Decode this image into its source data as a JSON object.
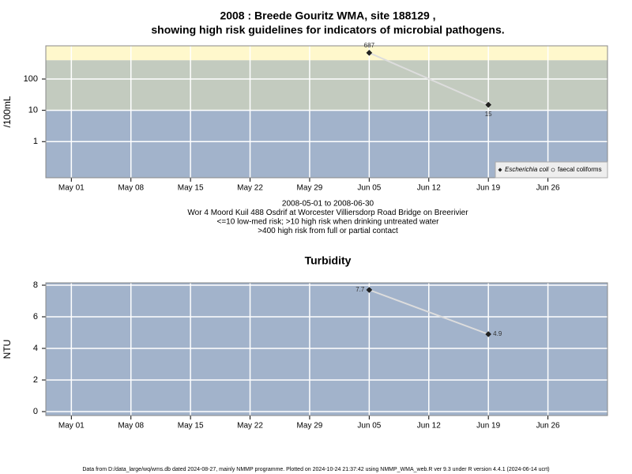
{
  "charts": [
    {
      "chart_data": {
        "type": "line",
        "log_y": true,
        "title": [
          "2008 : Breede Gouritz WMA, site 188129 ,",
          "showing high risk guidelines for indicators of microbial pathogens."
        ],
        "subtitle": [
          "2008-05-01 to 2008-06-30",
          "Wor 4 Moord Kuil 488 Osdrif at Worcester Villiersdorp Road Bridge on Breerivier",
          "<=10 low-med risk; >10 high risk when drinking untreated water",
          ">400 high risk from full or partial contact"
        ],
        "y_label": "/100mL",
        "x": [
          "2008-06-05",
          "2008-06-19"
        ],
        "series": [
          {
            "name": "Escherichia coli",
            "color": "#222222",
            "values": [
              687,
              15
            ]
          },
          {
            "name": "faecal coliforms",
            "color": "#ffffff",
            "values": [
              null,
              null
            ]
          }
        ],
        "xlim": [
          "2008-04-28",
          "2008-07-03"
        ],
        "xticks": [
          {
            "value": "2008-05-01",
            "label": "May 01"
          },
          {
            "value": "2008-05-08",
            "label": "May 08"
          },
          {
            "value": "2008-05-15",
            "label": "May 15"
          },
          {
            "value": "2008-05-22",
            "label": "May 22"
          },
          {
            "value": "2008-05-29",
            "label": "May 29"
          },
          {
            "value": "2008-06-05",
            "label": "Jun 05"
          },
          {
            "value": "2008-06-12",
            "label": "Jun 12"
          },
          {
            "value": "2008-06-19",
            "label": "Jun 19"
          },
          {
            "value": "2008-06-26",
            "label": "Jun 26"
          }
        ],
        "ylim": [
          0.07,
          1150
        ],
        "yticks": [
          1,
          10,
          100
        ],
        "thresholds": [
          10,
          400
        ],
        "band_colors": [
          "#a2b3cb",
          "#c3cbbf",
          "#fff8cc"
        ],
        "line_color": "#dddddd",
        "grid": true,
        "legend": "bottom-right"
      }
    },
    {
      "chart_data": {
        "type": "line",
        "log_y": false,
        "title": [
          "Turbidity"
        ],
        "y_label": "NTU",
        "x": [
          "2008-06-05",
          "2008-06-19"
        ],
        "series": [
          {
            "name": "Turbidity",
            "color": "#222222",
            "values": [
              7.7,
              4.9
            ]
          }
        ],
        "xlim": [
          "2008-04-28",
          "2008-07-03"
        ],
        "xticks": [
          {
            "value": "2008-05-01",
            "label": "May 01"
          },
          {
            "value": "2008-05-08",
            "label": "May 08"
          },
          {
            "value": "2008-05-15",
            "label": "May 15"
          },
          {
            "value": "2008-05-22",
            "label": "May 22"
          },
          {
            "value": "2008-05-29",
            "label": "May 29"
          },
          {
            "value": "2008-06-05",
            "label": "Jun 05"
          },
          {
            "value": "2008-06-12",
            "label": "Jun 12"
          },
          {
            "value": "2008-06-19",
            "label": "Jun 19"
          },
          {
            "value": "2008-06-26",
            "label": "Jun 26"
          }
        ],
        "ylim": [
          -0.25,
          8.15
        ],
        "yticks": [
          0,
          2,
          4,
          6,
          8
        ],
        "band_colors": [
          "#a2b3cb"
        ],
        "line_color": "#dddddd",
        "grid": true
      }
    }
  ],
  "footer": "Data from D:/data_large/wq/wms.db dated 2024-08-27, mainly NMMP programme. Plotted on 2024-10-24 21:37:42 using NMMP_WMA_web.R ver 9.3 under R version 4.4.1 (2024-06-14 ucrt)"
}
